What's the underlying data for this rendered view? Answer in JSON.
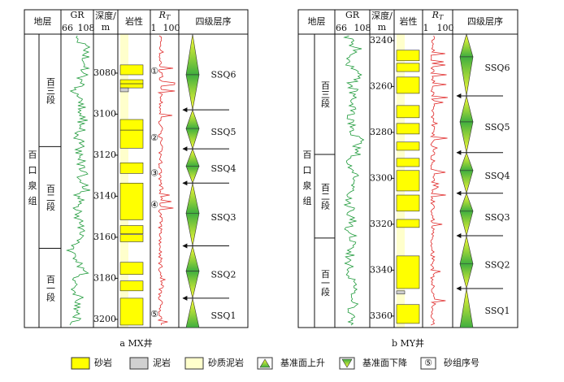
{
  "header": {
    "strata": "地层",
    "gr": "GR",
    "gr_min": 66,
    "gr_max": 108,
    "depth_1": "深度/",
    "depth_2": "m",
    "lithology": "岩性",
    "rt": "R",
    "rt_sub": "T",
    "rt_min": 1,
    "rt_max": 100,
    "sequence": "四级层序"
  },
  "wells": [
    {
      "caption": "a MX井",
      "formation": "百口泉组",
      "depth_range": [
        3061,
        3204
      ],
      "depth_ticks": [
        3080,
        3100,
        3120,
        3140,
        3160,
        3180,
        3200
      ],
      "members": [
        {
          "name": "百三段",
          "top": 3061,
          "base": 3115.8
        },
        {
          "name": "百二段",
          "top": 3115.8,
          "base": 3165.4
        },
        {
          "name": "百一段",
          "top": 3165.4,
          "base": 3204
        }
      ],
      "lithology": [
        {
          "top": 3061,
          "base": 3204,
          "color": "#ffffcc"
        },
        {
          "top": 3076.0,
          "base": 3080.8,
          "color": "#ffff00"
        },
        {
          "top": 3083.2,
          "base": 3085.2,
          "color": "#ffff00"
        },
        {
          "top": 3085.2,
          "base": 3087.2,
          "color": "#ffff00"
        },
        {
          "top": 3087.2,
          "base": 3089.1,
          "color": "#d0d0d0"
        },
        {
          "top": 3102.6,
          "base": 3107.8,
          "color": "#ffff00"
        },
        {
          "top": 3107.8,
          "base": 3116.6,
          "color": "#ffff00"
        },
        {
          "top": 3123.7,
          "base": 3128.9,
          "color": "#ffff00"
        },
        {
          "top": 3133.6,
          "base": 3151.5,
          "color": "#ffff00"
        },
        {
          "top": 3154.3,
          "base": 3158.3,
          "color": "#ffff00"
        },
        {
          "top": 3158.7,
          "base": 3162.2,
          "color": "#ffff00"
        },
        {
          "top": 3172.2,
          "base": 3178.1,
          "color": "#ffff00"
        },
        {
          "top": 3181.3,
          "base": 3186.1,
          "color": "#ffff00"
        },
        {
          "top": 3189.7,
          "base": 3202.8,
          "color": "#ffff00"
        }
      ],
      "sequences": [
        {
          "name": "SSQ6",
          "top": 3061,
          "mid": 3080.8,
          "base": 3097.9
        },
        {
          "name": "SSQ5",
          "top": 3097.9,
          "mid": 3107,
          "base": 3116.9
        },
        {
          "name": "SSQ4",
          "top": 3116.9,
          "mid": 3125.3,
          "base": 3133.6
        },
        {
          "name": "SSQ3",
          "top": 3133.6,
          "mid": 3148.3,
          "base": 3164.2
        },
        {
          "name": "SSQ2",
          "top": 3164.2,
          "mid": 3176.5,
          "base": 3189.7
        },
        {
          "name": "SSQ1",
          "top": 3189.7,
          "mid": 3204,
          "base": 3204
        }
      ],
      "sand_groups": [
        {
          "label": "①",
          "depth": 3079.2
        },
        {
          "label": "②",
          "depth": 3111.8
        },
        {
          "label": "③",
          "depth": 3128.9
        },
        {
          "label": "④",
          "depth": 3144.4
        },
        {
          "label": "⑤",
          "depth": 3197.6
        }
      ]
    },
    {
      "caption": "b MY井",
      "formation": "百口泉组",
      "depth_range": [
        3237.2,
        3365
      ],
      "depth_ticks": [
        3240,
        3260,
        3280,
        3300,
        3320,
        3340,
        3360
      ],
      "members": [
        {
          "name": "百三段",
          "top": 3237.2,
          "base": 3289.6
        },
        {
          "name": "百二段",
          "top": 3289.6,
          "base": 3326.0
        },
        {
          "name": "百一段",
          "top": 3326.0,
          "base": 3365
        }
      ],
      "lithology": [
        {
          "top": 3237.2,
          "base": 3365,
          "color": "#ffffcc"
        },
        {
          "top": 3244.2,
          "base": 3248.8,
          "color": "#ffff00"
        },
        {
          "top": 3249.9,
          "base": 3253.5,
          "color": "#ffff00"
        },
        {
          "top": 3255.9,
          "base": 3263.0,
          "color": "#ffff00"
        },
        {
          "top": 3268.3,
          "base": 3273.6,
          "color": "#ffff00"
        },
        {
          "top": 3276.1,
          "base": 3280.7,
          "color": "#ffff00"
        },
        {
          "top": 3284.2,
          "base": 3287.8,
          "color": "#ffff00"
        },
        {
          "top": 3291.3,
          "base": 3294.9,
          "color": "#ffff00"
        },
        {
          "top": 3296.6,
          "base": 3305.5,
          "color": "#ffff00"
        },
        {
          "top": 3307.3,
          "base": 3314.3,
          "color": "#ffff00"
        },
        {
          "top": 3317.9,
          "base": 3321.4,
          "color": "#ffff00"
        },
        {
          "top": 3333.8,
          "base": 3348.0,
          "color": "#ffff00"
        },
        {
          "top": 3349.0,
          "base": 3350.4,
          "color": "#d0d0d0"
        },
        {
          "top": 3355.0,
          "base": 3363.2,
          "color": "#ffff00"
        }
      ],
      "sequences": [
        {
          "name": "SSQ6",
          "top": 3237.2,
          "mid": 3247.1,
          "base": 3264.1
        },
        {
          "name": "SSQ5",
          "top": 3264.1,
          "mid": 3275.4,
          "base": 3288.8
        },
        {
          "name": "SSQ4",
          "top": 3288.8,
          "mid": 3296.6,
          "base": 3306.5
        },
        {
          "name": "SSQ3",
          "top": 3306.5,
          "mid": 3314.3,
          "base": 3325.0
        },
        {
          "name": "SSQ2",
          "top": 3325.0,
          "mid": 3337.3,
          "base": 3348.0
        },
        {
          "name": "SSQ1",
          "top": 3348.0,
          "mid": 3365,
          "base": 3365
        }
      ]
    }
  ],
  "legend": [
    {
      "label": "砂岩",
      "color": "#ffff00"
    },
    {
      "label": "泥岩",
      "color": "#d0d0d0"
    },
    {
      "label": "砂质泥岩",
      "color": "#ffffcc"
    },
    {
      "label": "基准面上升",
      "marker": "up"
    },
    {
      "label": "基准面下降",
      "marker": "down"
    },
    {
      "label": "砂组序号",
      "symbol": "⑤"
    }
  ]
}
